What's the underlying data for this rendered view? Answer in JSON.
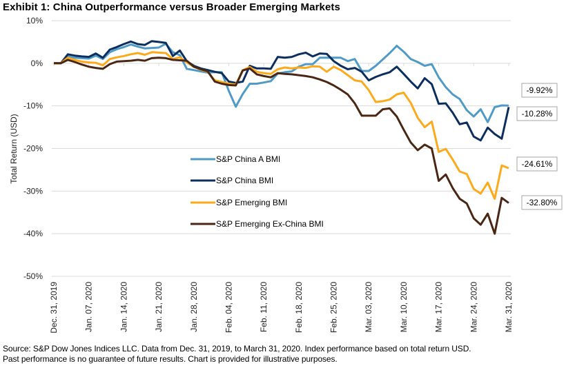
{
  "title": "Exhibit 1: China Outperformance  versus  Broader Emerging Markets",
  "source_lines": [
    "Source: S&P Dow Jones Indices LLC. Data  from Dec. 31, 2019, to March 31, 2020. Index performance based on total return USD.",
    "Past performance is no guarantee of future results. Chart is provided for illustrative purposes."
  ],
  "chart_data": {
    "type": "line",
    "title": "Exhibit 1: China Outperformance versus Broader Emerging Markets",
    "xlabel": "",
    "ylabel": "Total Return (USD)",
    "ylim": [
      -50,
      10
    ],
    "yticks": [
      10,
      0,
      -10,
      -20,
      -30,
      -40,
      -50
    ],
    "ytick_labels": [
      "10%",
      "0%",
      "-10%",
      "-20%",
      "-30%",
      "-40%",
      "-50%"
    ],
    "grid": true,
    "legend_position": "center",
    "x_count": 66,
    "xtick_indices": [
      0,
      5,
      10,
      15,
      20,
      25,
      30,
      35,
      40,
      45,
      50,
      55,
      60,
      65
    ],
    "xtick_labels": [
      "Dec. 31, 2019",
      "Jan. 07, 2020",
      "Jan. 14, 2020",
      "Jan. 21, 2020",
      "Jan. 28, 2020",
      "Feb. 04, 2020",
      "Feb. 11, 2020",
      "Feb. 18, 2020",
      "Feb. 25, 2020",
      "Mar. 03, 2020",
      "Mar. 10, 2020",
      "Mar. 17, 2020",
      "Mar. 24, 2020",
      "Mar. 31, 2020"
    ],
    "series": [
      {
        "name": "S&P China A BMI",
        "color": "#4f9ac6",
        "end_label": "-9.92%",
        "values": [
          0,
          0,
          1.6,
          1.3,
          1.2,
          1.1,
          1.8,
          1.0,
          2.6,
          3.3,
          3.8,
          4.4,
          3.9,
          3.5,
          3.6,
          3.7,
          4.6,
          2.6,
          1.9,
          -1.3,
          -1.6,
          -1.9,
          -2.2,
          -2.1,
          -2.1,
          -6.5,
          -10.2,
          -7.2,
          -4.8,
          -4.8,
          -4.5,
          -4.2,
          -2.4,
          -2.1,
          -1.9,
          -0.8,
          -0.2,
          -0.2,
          1.3,
          1.3,
          1.3,
          1.3,
          0.5,
          1.0,
          -1.8,
          -1.8,
          -0.6,
          0.9,
          2.4,
          4.1,
          2.7,
          1.0,
          0.3,
          -0.6,
          -0.2,
          -3.3,
          -5.6,
          -7.3,
          -8.4,
          -11.0,
          -12.5,
          -10.8,
          -13.8,
          -10.3,
          -9.9,
          -9.92
        ]
      },
      {
        "name": "S&P China BMI",
        "color": "#0c2e5e",
        "end_label": "-10.28%",
        "values": [
          0,
          0,
          2.1,
          1.8,
          1.6,
          1.5,
          2.3,
          1.3,
          3.2,
          3.8,
          4.5,
          5.1,
          4.5,
          4.3,
          5.2,
          5.0,
          4.8,
          1.7,
          3.0,
          0.5,
          -0.6,
          -1.2,
          -1.6,
          -2.0,
          -2.3,
          -4.3,
          -4.6,
          -4.3,
          -0.6,
          -1.2,
          -1.2,
          -1.3,
          1.5,
          1.3,
          1.5,
          2.1,
          2.5,
          1.6,
          2.3,
          2.2,
          0.5,
          -0.6,
          -1.4,
          -1.1,
          -2.0,
          -4.0,
          -3.2,
          -2.6,
          -2.1,
          -0.8,
          -2.5,
          -4.3,
          -5.9,
          -3.5,
          -4.9,
          -9.5,
          -9.4,
          -11.6,
          -14.3,
          -13.9,
          -17.2,
          -18.1,
          -15.1,
          -16.6,
          -17.7,
          -10.28
        ]
      },
      {
        "name": "S&P Emerging BMI",
        "color": "#fcaa1b",
        "end_label": "-24.61%",
        "values": [
          0,
          0,
          1.3,
          0.8,
          0.4,
          0.2,
          0.1,
          -0.5,
          1.0,
          1.4,
          1.7,
          2.1,
          2.4,
          2.0,
          2.6,
          2.5,
          2.4,
          1.0,
          1.4,
          0.2,
          -0.8,
          -1.5,
          -2.0,
          -4.0,
          -4.4,
          -4.8,
          -5.0,
          -1.6,
          -0.9,
          -2.0,
          -2.3,
          -2.5,
          -1.4,
          -1.0,
          -1.2,
          -1.0,
          -1.1,
          -0.7,
          -0.8,
          -2.0,
          -0.8,
          -1.6,
          -2.8,
          -4.0,
          -4.3,
          -6.3,
          -9.1,
          -8.9,
          -8.5,
          -7.3,
          -6.9,
          -9.3,
          -12.8,
          -15.0,
          -13.7,
          -20.8,
          -20.1,
          -22.6,
          -25.4,
          -26.0,
          -29.5,
          -30.6,
          -28.0,
          -31.8,
          -24.0,
          -24.61
        ]
      },
      {
        "name": "S&P Emerging Ex-China BMI",
        "color": "#4a2714",
        "end_label": "-32.80%",
        "values": [
          0,
          0,
          0.8,
          0.3,
          -0.3,
          -0.8,
          -1.1,
          -1.3,
          -0.2,
          0.4,
          0.5,
          0.6,
          0.8,
          0.6,
          1.2,
          1.3,
          1.2,
          0.8,
          0.7,
          0.6,
          -0.8,
          -1.4,
          -1.9,
          -4.3,
          -4.8,
          -5.1,
          -5.2,
          -1.7,
          -1.2,
          -2.6,
          -3.0,
          -3.3,
          -2.3,
          -2.5,
          -2.6,
          -2.8,
          -3.0,
          -3.3,
          -3.8,
          -4.4,
          -5.2,
          -6.2,
          -7.3,
          -9.4,
          -12.3,
          -12.3,
          -12.3,
          -10.8,
          -10.6,
          -12.5,
          -15.6,
          -18.6,
          -20.4,
          -19.1,
          -20.0,
          -27.6,
          -26.1,
          -29.3,
          -31.8,
          -32.9,
          -36.4,
          -37.9,
          -35.3,
          -40.0,
          -31.6,
          -32.8
        ]
      }
    ]
  }
}
